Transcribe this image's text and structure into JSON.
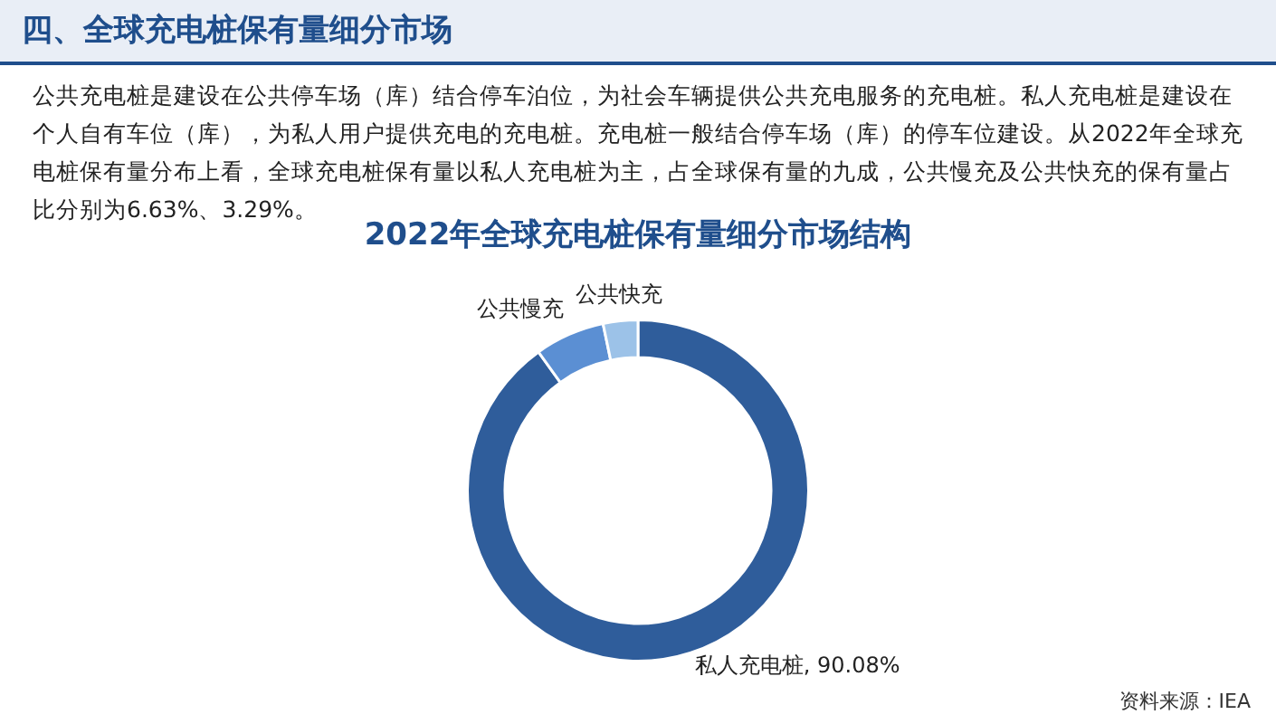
{
  "chart_data": {
    "type": "donut",
    "title": "2022年全球充电桩保有量细分市场结构",
    "categories": [
      "私人充电桩",
      "公共慢充",
      "公共快充"
    ],
    "values": [
      90.08,
      6.63,
      3.29
    ],
    "colors": [
      "#2f5d9b",
      "#5b8fd3",
      "#9cc2e8"
    ],
    "value_labels": [
      "90.08%",
      null,
      null
    ],
    "annotations": [
      "四、全球充电桩保有量细分市场",
      "公共充电桩是建设在公共停车场（库）结合停车泊位，为社会车辆提供公共充电服务的充电桩。私人充电桩是建设在个人自有车位（库），为私人用户提供充电的充电桩。充电桩一般结合停车场（库）的停车位建设。从2022年全球充电桩保有量分布上看，全球充电桩保有量以私人充电桩为主，占全球保有量的九成，公共慢充及公共快充的保有量占比分别为6.63%、3.29%。",
      "资料来源：IEA"
    ]
  }
}
